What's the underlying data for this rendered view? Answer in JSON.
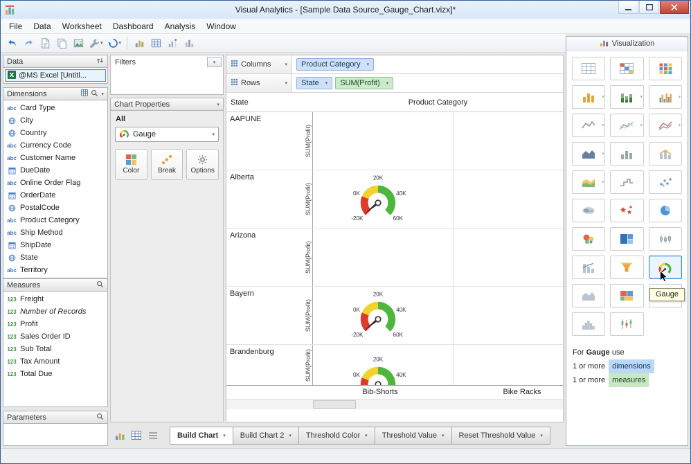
{
  "window": {
    "title": "Visual Analytics - [Sample Data Source_Gauge_Chart.vizx]*"
  },
  "menubar": {
    "items": [
      "File",
      "Data",
      "Worksheet",
      "Dashboard",
      "Analysis",
      "Window"
    ]
  },
  "toolbar": {
    "buttons": [
      {
        "name": "undo"
      },
      {
        "name": "redo"
      },
      {
        "name": "new-worksheet"
      },
      {
        "name": "duplicate"
      },
      {
        "name": "export-image"
      },
      {
        "name": "tools",
        "dropdown": true
      },
      {
        "name": "refresh-data",
        "dropdown": true
      },
      {
        "separator": true
      },
      {
        "name": "show-chart"
      },
      {
        "name": "show-crosstab"
      },
      {
        "name": "swap-axes"
      },
      {
        "name": "show-bars"
      }
    ]
  },
  "data_panel": {
    "title": "Data",
    "source_label": "@MS Excel [Untitl...",
    "dimensions": {
      "title": "Dimensions",
      "items": [
        {
          "icon": "abc",
          "label": "Card Type"
        },
        {
          "icon": "globe",
          "label": "City"
        },
        {
          "icon": "globe",
          "label": "Country"
        },
        {
          "icon": "abc",
          "label": "Currency Code"
        },
        {
          "icon": "abc",
          "label": "Customer Name"
        },
        {
          "icon": "date",
          "label": "DueDate"
        },
        {
          "icon": "abc",
          "label": "Online Order Flag"
        },
        {
          "icon": "date",
          "label": "OrderDate"
        },
        {
          "icon": "globe",
          "label": "PostalCode"
        },
        {
          "icon": "abc",
          "label": "Product Category"
        },
        {
          "icon": "abc",
          "label": "Ship Method"
        },
        {
          "icon": "date",
          "label": "ShipDate"
        },
        {
          "icon": "globe",
          "label": "State"
        },
        {
          "icon": "abc",
          "label": "Territory"
        }
      ]
    },
    "measures": {
      "title": "Measures",
      "items": [
        {
          "icon": "num",
          "label": "Freight"
        },
        {
          "icon": "num",
          "label": "Number of Records",
          "italic": true
        },
        {
          "icon": "num",
          "label": "Profit"
        },
        {
          "icon": "num",
          "label": "Sales Order ID"
        },
        {
          "icon": "num",
          "label": "Sub Total"
        },
        {
          "icon": "num",
          "label": "Tax Amount"
        },
        {
          "icon": "num",
          "label": "Total Due"
        }
      ]
    },
    "parameters": {
      "title": "Parameters"
    }
  },
  "properties_panel": {
    "filters_title": "Filters",
    "header": "Chart Properties",
    "scope": "All",
    "chart_type_value": "Gauge",
    "buttons": [
      {
        "label": "Color",
        "icon": "color-grid"
      },
      {
        "label": "Break",
        "icon": "break-dots"
      },
      {
        "label": "Options",
        "icon": "gear"
      }
    ]
  },
  "canvas": {
    "shelves": {
      "columns_label": "Columns",
      "rows_label": "Rows",
      "columns_pills": [
        {
          "label": "Product Category",
          "type": "dimension"
        }
      ],
      "rows_pills": [
        {
          "label": "State",
          "type": "dimension"
        },
        {
          "label": "SUM(Profit)",
          "type": "measure"
        }
      ]
    },
    "chart": {
      "row_dimension": "State",
      "column_dimension": "Product Category",
      "y_axis_label": "SUM(Profit)",
      "column_categories": [
        "Bib-Shorts",
        "Bike Racks"
      ],
      "gauge_ticks": {
        "min": "-20K",
        "low": "0K",
        "mid": "20K",
        "high": "40K",
        "max": "60K"
      },
      "rows": [
        {
          "state": "AAPUNE",
          "has_gauge": false
        },
        {
          "state": "Alberta",
          "has_gauge": true
        },
        {
          "state": "Arizona",
          "has_gauge": false
        },
        {
          "state": "Bayern",
          "has_gauge": true
        },
        {
          "state": "Brandenburg",
          "has_gauge": true,
          "clipped": true
        }
      ]
    }
  },
  "viz_panel": {
    "title": "Visualization",
    "tooltip": "Gauge",
    "items": [
      {
        "name": "text-table"
      },
      {
        "name": "highlight-table"
      },
      {
        "name": "heat-map"
      },
      {
        "name": "bar-chart",
        "dropdown": true
      },
      {
        "name": "stacked-bar",
        "dropdown": true
      },
      {
        "name": "side-by-side-bar",
        "dropdown": true
      },
      {
        "name": "line-chart",
        "dropdown": true
      },
      {
        "name": "dual-line",
        "dropdown": true
      },
      {
        "name": "multi-line",
        "dropdown": true
      },
      {
        "name": "area-chart",
        "dropdown": true
      },
      {
        "name": "column-chart"
      },
      {
        "name": "combo-chart"
      },
      {
        "name": "stacked-area",
        "dropdown": true
      },
      {
        "name": "step-line"
      },
      {
        "name": "scatter-plot"
      },
      {
        "name": "word-cloud"
      },
      {
        "name": "shape-chart"
      },
      {
        "name": "pie-chart"
      },
      {
        "name": "packed-bubbles"
      },
      {
        "name": "treemap"
      },
      {
        "name": "box-plot"
      },
      {
        "name": "pareto-chart"
      },
      {
        "name": "funnel-chart"
      },
      {
        "name": "gauge",
        "selected": true
      },
      {
        "name": "area-gray"
      },
      {
        "name": "treemap-multi"
      },
      {
        "name": "pyramid"
      },
      {
        "name": "histogram"
      },
      {
        "name": "candlestick"
      }
    ],
    "usage": {
      "prefix": "For",
      "chart": "Gauge",
      "suffix": "use",
      "rules": [
        {
          "qty": "1 or more",
          "chip": "dimensions",
          "kind": "dimension"
        },
        {
          "qty": "1 or more",
          "chip": "measures",
          "kind": "measure"
        }
      ]
    }
  },
  "bottom_bar": {
    "view_buttons": [
      "view-chart",
      "view-crosstab",
      "view-list"
    ],
    "tabs": [
      {
        "label": "Build Chart",
        "active": true
      },
      {
        "label": "Build Chart 2"
      },
      {
        "label": "Threshold Color"
      },
      {
        "label": "Threshold Value"
      },
      {
        "label": "Reset Threshold Value"
      }
    ]
  },
  "colors": {
    "dimension_pill": "#cfe1fa",
    "measure_pill": "#cdeacc",
    "gauge_red": "#dd3b2b",
    "gauge_yellow": "#f2d22e",
    "gauge_green": "#4eb63d",
    "selection_blue": "#3d8fe0",
    "close_red": "#c1443c"
  }
}
